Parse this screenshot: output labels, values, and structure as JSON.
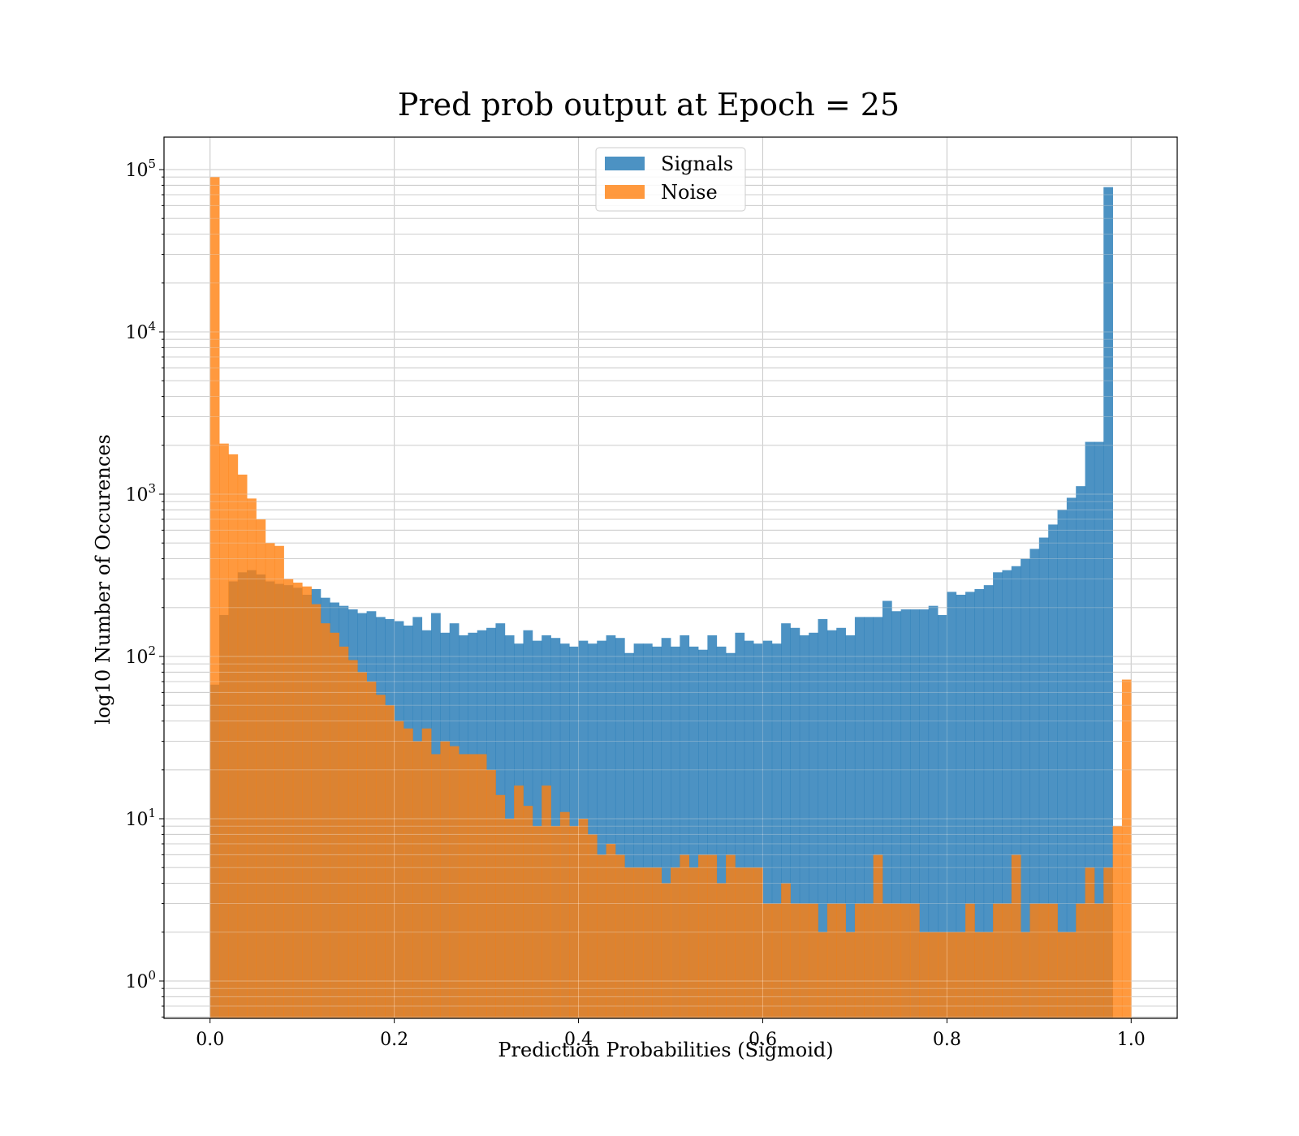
{
  "chart_data": {
    "type": "bar",
    "title": "Pred prob output at Epoch = 25",
    "xlabel": "Prediction Probabilities (Sigmoid)",
    "ylabel": "log10 Number of Occurences",
    "xlim": [
      -0.05,
      1.05
    ],
    "ylim_log10": [
      -0.23,
      5.2
    ],
    "yscale": "log",
    "grid": true,
    "legend_position": "upper-center",
    "bin_range": [
      0.0,
      1.0
    ],
    "bin_count": 100,
    "x_ticks": [
      "0.0",
      "0.2",
      "0.4",
      "0.6",
      "0.8",
      "1.0"
    ],
    "x_tick_values": [
      0.0,
      0.2,
      0.4,
      0.6,
      0.8,
      1.0
    ],
    "y_ticks": [
      {
        "base": "10",
        "exp": "0",
        "value": 1
      },
      {
        "base": "10",
        "exp": "1",
        "value": 10
      },
      {
        "base": "10",
        "exp": "2",
        "value": 100
      },
      {
        "base": "10",
        "exp": "3",
        "value": 1000
      },
      {
        "base": "10",
        "exp": "4",
        "value": 10000
      },
      {
        "base": "10",
        "exp": "5",
        "value": 100000
      }
    ],
    "series": [
      {
        "name": "Signals",
        "color": "#1f77b4",
        "values": [
          67,
          180,
          290,
          330,
          340,
          320,
          290,
          280,
          275,
          265,
          240,
          260,
          230,
          215,
          205,
          195,
          185,
          190,
          175,
          170,
          165,
          155,
          175,
          145,
          185,
          140,
          160,
          135,
          140,
          145,
          150,
          160,
          135,
          120,
          145,
          125,
          135,
          130,
          120,
          115,
          125,
          120,
          125,
          135,
          130,
          105,
          120,
          120,
          115,
          130,
          115,
          135,
          115,
          110,
          135,
          115,
          105,
          140,
          125,
          120,
          125,
          120,
          160,
          150,
          135,
          140,
          170,
          145,
          150,
          135,
          175,
          175,
          175,
          220,
          190,
          195,
          195,
          195,
          205,
          180,
          250,
          240,
          250,
          260,
          275,
          330,
          340,
          360,
          400,
          460,
          540,
          650,
          800,
          950,
          1120,
          2100,
          2100,
          78000,
          0,
          0
        ]
      },
      {
        "name": "Noise",
        "color": "#ff7f0e",
        "values": [
          90000,
          2050,
          1760,
          1320,
          940,
          700,
          500,
          480,
          300,
          285,
          270,
          210,
          160,
          140,
          115,
          95,
          80,
          70,
          58,
          50,
          40,
          36,
          30,
          36,
          25,
          30,
          28,
          25,
          25,
          25,
          20,
          14,
          10,
          16,
          12,
          9,
          16,
          9,
          11,
          9,
          10,
          8,
          6,
          7,
          6,
          5,
          5,
          5,
          5,
          4,
          5,
          6,
          5,
          6,
          6,
          4,
          6,
          5,
          5,
          5,
          3,
          3,
          4,
          3,
          3,
          3,
          2,
          3,
          3,
          2,
          3,
          3,
          6,
          3,
          3,
          3,
          3,
          2,
          2,
          2,
          2,
          2,
          3,
          2,
          2,
          3,
          3,
          6,
          2,
          3,
          3,
          3,
          2,
          2,
          3,
          5,
          3,
          5,
          9,
          72
        ]
      }
    ]
  }
}
